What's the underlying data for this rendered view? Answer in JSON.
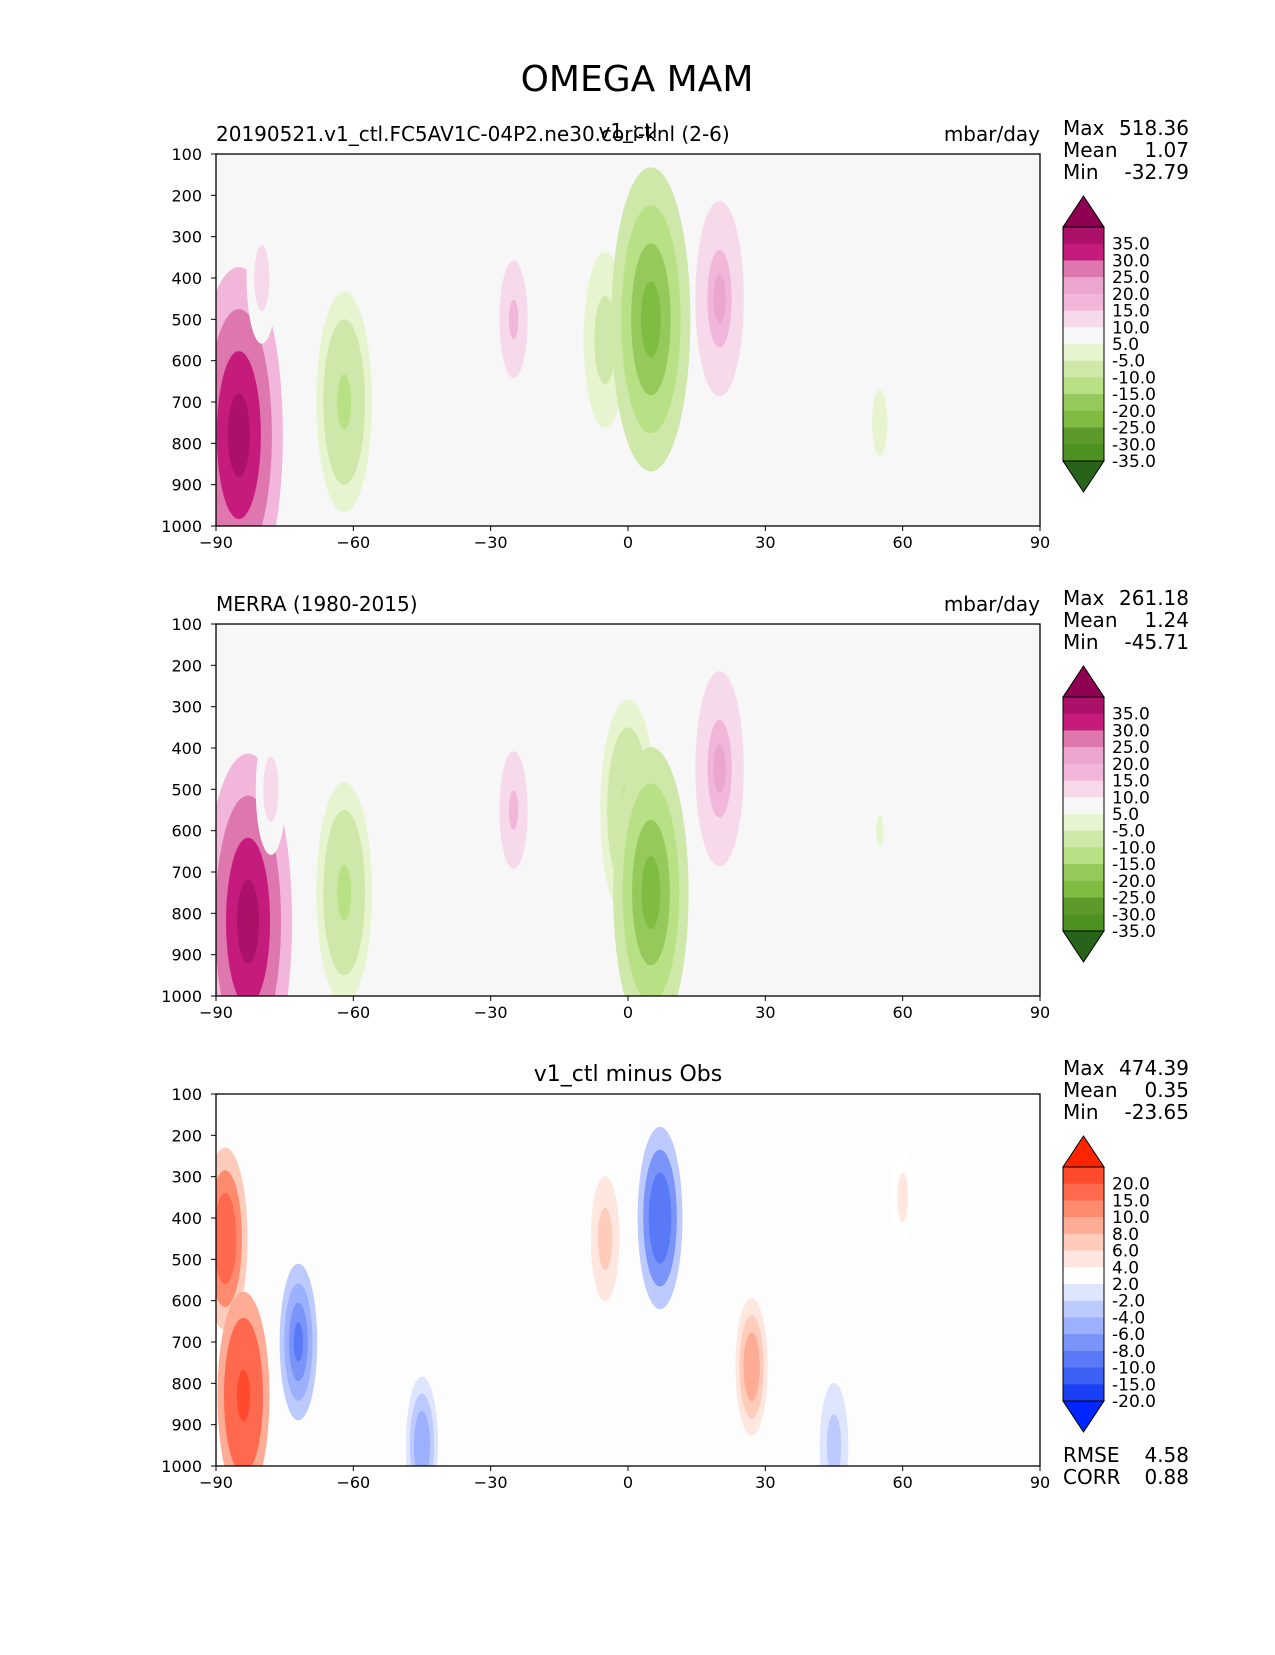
{
  "figure": {
    "title": "OMEGA MAM"
  },
  "colors": {
    "frame": "#000000",
    "field_bg": "#f7f7f7",
    "diff_bg": "#fdfdfd",
    "omega_scale": [
      "#8e0152",
      "#ab1168",
      "#c51b7d",
      "#de77ae",
      "#eaa6cd",
      "#f1b6da",
      "#f7d9ec",
      "#f7f7f7",
      "#e6f5d0",
      "#cde8a8",
      "#b8e186",
      "#96c95b",
      "#7fbc41",
      "#5c9a2c",
      "#4d9221",
      "#276419"
    ],
    "diff_scale": [
      "#ff2400",
      "#ff4a2e",
      "#ff6a4e",
      "#ff8b6e",
      "#ffac97",
      "#ffccbb",
      "#ffe6df",
      "#ffffff",
      "#dde5ff",
      "#bccafe",
      "#9cb0fd",
      "#7a94fa",
      "#5a79f7",
      "#3c60f4",
      "#1a3ff5",
      "#0026ff"
    ]
  },
  "chart_data": [
    {
      "type": "heatmap",
      "panel": "test",
      "title_left": "20190521.v1_ctl.FC5AV1C-04P2.ne30.cori-knl (2-6)",
      "title_center": "v1_ctl",
      "units": "mbar/day",
      "xlabel": "",
      "ylabel": "",
      "xlim": [
        -90,
        90
      ],
      "ylim": [
        1000,
        100
      ],
      "xticks": [
        "−90",
        "−60",
        "−30",
        "0",
        "30",
        "60",
        "90"
      ],
      "yticks": [
        "100",
        "200",
        "300",
        "400",
        "500",
        "600",
        "700",
        "800",
        "900",
        "1000"
      ],
      "stats": {
        "max_label": "Max",
        "max": "518.36",
        "mean_label": "Mean",
        "mean": "1.07",
        "min_label": "Min",
        "min": "-32.79"
      },
      "colorbar_levels": [
        "35.0",
        "30.0",
        "25.0",
        "20.0",
        "15.0",
        "10.0",
        "5.0",
        "-5.0",
        "-10.0",
        "-15.0",
        "-20.0",
        "-25.0",
        "-30.0",
        "-35.0"
      ],
      "features": [
        {
          "lat": -85,
          "lev": 780,
          "value": 40
        },
        {
          "lat": -80,
          "lev": 400,
          "value": 8
        },
        {
          "lat": -62,
          "lev": 700,
          "value": -22
        },
        {
          "lat": -25,
          "lev": 500,
          "value": 12
        },
        {
          "lat": -5,
          "lev": 550,
          "value": -15
        },
        {
          "lat": 5,
          "lev": 500,
          "value": -35
        },
        {
          "lat": 20,
          "lev": 450,
          "value": 18
        },
        {
          "lat": 55,
          "lev": 750,
          "value": -8
        }
      ]
    },
    {
      "type": "heatmap",
      "panel": "reference",
      "title_left": "MERRA (1980-2015)",
      "title_center": "",
      "units": "mbar/day",
      "xlabel": "",
      "ylabel": "",
      "xlim": [
        -90,
        90
      ],
      "ylim": [
        1000,
        100
      ],
      "xticks": [
        "−90",
        "−60",
        "−30",
        "0",
        "30",
        "60",
        "90"
      ],
      "yticks": [
        "100",
        "200",
        "300",
        "400",
        "500",
        "600",
        "700",
        "800",
        "900",
        "1000"
      ],
      "stats": {
        "max_label": "Max",
        "max": "261.18",
        "mean_label": "Mean",
        "mean": "1.24",
        "min_label": "Min",
        "min": "-45.71"
      },
      "colorbar_levels": [
        "35.0",
        "30.0",
        "25.0",
        "20.0",
        "15.0",
        "10.0",
        "5.0",
        "-5.0",
        "-10.0",
        "-15.0",
        "-20.0",
        "-25.0",
        "-30.0",
        "-35.0"
      ],
      "features": [
        {
          "lat": -83,
          "lev": 820,
          "value": 40
        },
        {
          "lat": -78,
          "lev": 500,
          "value": 8
        },
        {
          "lat": -62,
          "lev": 750,
          "value": -22
        },
        {
          "lat": -25,
          "lev": 550,
          "value": 12
        },
        {
          "lat": 0,
          "lev": 550,
          "value": -22
        },
        {
          "lat": 5,
          "lev": 750,
          "value": -33
        },
        {
          "lat": 20,
          "lev": 450,
          "value": 18
        },
        {
          "lat": 55,
          "lev": 600,
          "value": -7
        }
      ]
    },
    {
      "type": "heatmap",
      "panel": "difference",
      "title_left": "",
      "title_center": "v1_ctl minus Obs",
      "units": "",
      "xlabel": "",
      "ylabel": "",
      "xlim": [
        -90,
        90
      ],
      "ylim": [
        1000,
        100
      ],
      "xticks": [
        "−90",
        "−60",
        "−30",
        "0",
        "30",
        "60",
        "90"
      ],
      "yticks": [
        "100",
        "200",
        "300",
        "400",
        "500",
        "600",
        "700",
        "800",
        "900",
        "1000"
      ],
      "stats": {
        "max_label": "Max",
        "max": "474.39",
        "mean_label": "Mean",
        "mean": "0.35",
        "min_label": "Min",
        "min": "-23.65"
      },
      "colorbar_levels": [
        "20.0",
        "15.0",
        "10.0",
        "8.0",
        "6.0",
        "4.0",
        "2.0",
        "-2.0",
        "-4.0",
        "-6.0",
        "-8.0",
        "-10.0",
        "-15.0",
        "-20.0"
      ],
      "metrics": {
        "rmse_label": "RMSE",
        "rmse": "4.58",
        "corr_label": "CORR",
        "corr": "0.88"
      },
      "features": [
        {
          "lat": -88,
          "lev": 450,
          "value": 16
        },
        {
          "lat": -84,
          "lev": 830,
          "value": 20
        },
        {
          "lat": -72,
          "lev": 700,
          "value": -12
        },
        {
          "lat": -45,
          "lev": 950,
          "value": -9
        },
        {
          "lat": -5,
          "lev": 450,
          "value": 7
        },
        {
          "lat": 7,
          "lev": 400,
          "value": -16
        },
        {
          "lat": 27,
          "lev": 760,
          "value": 9
        },
        {
          "lat": 45,
          "lev": 950,
          "value": -7
        },
        {
          "lat": 60,
          "lev": 350,
          "value": 3
        }
      ]
    }
  ]
}
